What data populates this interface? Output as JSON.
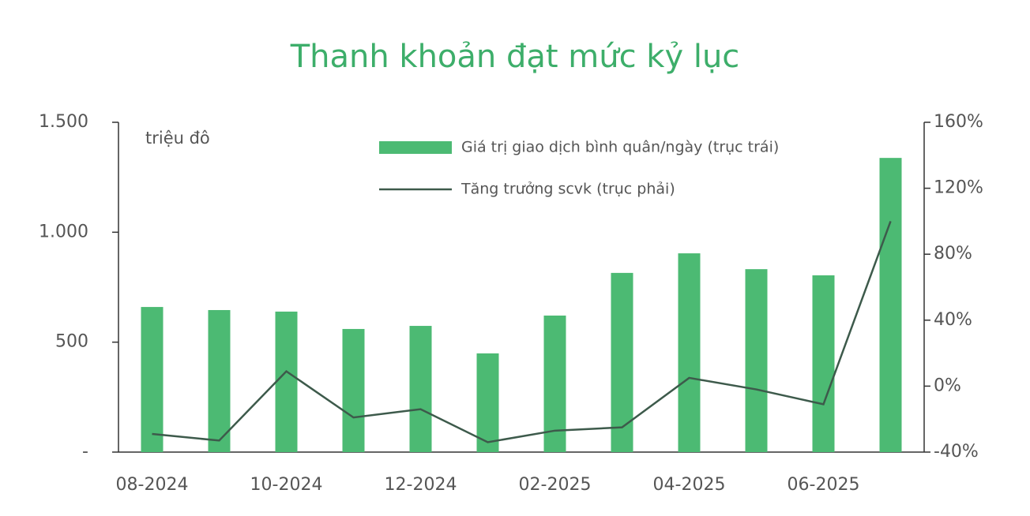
{
  "chart_data": {
    "type": "bar-line",
    "title": "Thanh khoản đạt mức kỷ lục",
    "annotation": "triệu đô",
    "categories": [
      "08-2024",
      null,
      "10-2024",
      null,
      "12-2024",
      null,
      "02-2025",
      null,
      "04-2025",
      null,
      "06-2025",
      null
    ],
    "series": [
      {
        "name": "Giá trị giao dịch bình quân/ngày (trục trái)",
        "type": "bar",
        "color": "#4cba73",
        "axis": "y",
        "values": [
          660,
          646,
          639,
          560,
          574,
          449,
          621,
          815,
          904,
          832,
          804,
          1338
        ]
      },
      {
        "name": "Tăng trưởng scvk (trục phải)",
        "type": "line",
        "color": "#3d5a4b",
        "axis": "y2",
        "values": [
          -29,
          -33,
          9,
          -19,
          -14,
          -34,
          -27,
          -25,
          5,
          -2,
          -11,
          100
        ]
      }
    ],
    "ylim": [
      0,
      1500
    ],
    "yticks": [
      {
        "value": 0,
        "label": "-"
      },
      500,
      {
        "value": 1000,
        "label": "1.000"
      },
      {
        "value": 1500,
        "label": "1.500"
      }
    ],
    "y2lim": [
      -40,
      160
    ],
    "y2ticks": [
      {
        "value": -40,
        "label": "-40%"
      },
      {
        "value": 0,
        "label": "0%"
      },
      {
        "value": 40,
        "label": "40%"
      },
      {
        "value": 80,
        "label": "80%"
      },
      {
        "value": 120,
        "label": "120%"
      },
      {
        "value": 160,
        "label": "160%"
      }
    ],
    "legend": "top"
  }
}
